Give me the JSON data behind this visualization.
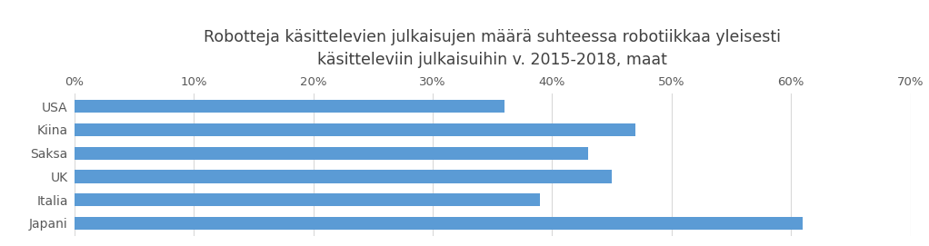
{
  "title": "Robotteja käsittelevien julkaisujen määrä suhteessa robotiikkaa yleisesti\nkäsitteleviin julkaisuihin v. 2015-2018, maat",
  "categories": [
    "USA",
    "Kiina",
    "Saksa",
    "UK",
    "Italia",
    "Japani"
  ],
  "values": [
    0.36,
    0.47,
    0.43,
    0.45,
    0.39,
    0.61
  ],
  "bar_color": "#5B9BD5",
  "xlim": [
    0,
    0.7
  ],
  "xticks": [
    0.0,
    0.1,
    0.2,
    0.3,
    0.4,
    0.5,
    0.6,
    0.7
  ],
  "xticklabels": [
    "0%",
    "10%",
    "20%",
    "30%",
    "40%",
    "50%",
    "60%",
    "70%"
  ],
  "background_color": "#ffffff",
  "title_fontsize": 12.5,
  "tick_fontsize": 9.5,
  "label_fontsize": 10,
  "grid_color": "#D9D9D9"
}
